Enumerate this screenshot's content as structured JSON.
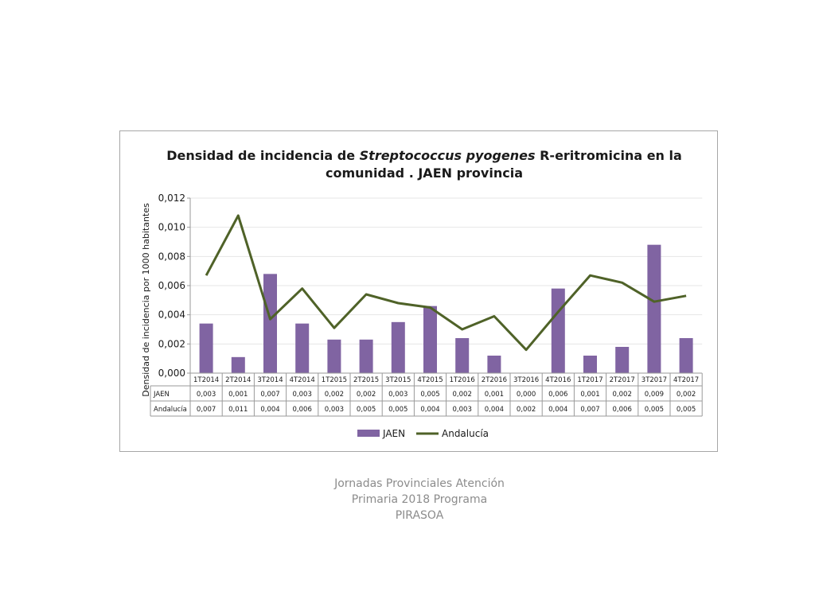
{
  "colors": {
    "jaen": "#8064a2",
    "andalucia": "#4f6228",
    "grid": "#e6e6e6",
    "axis": "#9a9a9a",
    "text": "#1a1a1a"
  },
  "chart_data": {
    "type": "bar",
    "title_line1_a": "Densidad de incidencia de ",
    "title_line1_italic": "Streptococcus pyogenes",
    "title_line1_b": " R-eritromicina en la",
    "title_line2": "comunidad . JAEN provincia",
    "ylabel": "Densidad de incidencia por 1000 habitantes",
    "ylim": [
      0,
      0.012
    ],
    "yticks": [
      "0,000",
      "0,002",
      "0,004",
      "0,006",
      "0,008",
      "0,010",
      "0,012"
    ],
    "categories": [
      "1T2014",
      "2T2014",
      "3T2014",
      "4T2014",
      "1T2015",
      "2T2015",
      "3T2015",
      "4T2015",
      "1T2016",
      "2T2016",
      "3T2016",
      "4T2016",
      "1T2017",
      "2T2017",
      "3T2017",
      "4T2017"
    ],
    "series": [
      {
        "name": "JAEN",
        "kind": "bar",
        "values": [
          0.0034,
          0.0011,
          0.0068,
          0.0034,
          0.0023,
          0.0023,
          0.0035,
          0.0046,
          0.0024,
          0.0012,
          0.0,
          0.0058,
          0.0012,
          0.0018,
          0.0088,
          0.0024
        ],
        "labels": [
          "0,003",
          "0,001",
          "0,007",
          "0,003",
          "0,002",
          "0,002",
          "0,003",
          "0,005",
          "0,002",
          "0,001",
          "0,000",
          "0,006",
          "0,001",
          "0,002",
          "0,009",
          "0,002"
        ]
      },
      {
        "name": "Andalucía",
        "kind": "line",
        "values": [
          0.0067,
          0.0108,
          0.0037,
          0.0058,
          0.0031,
          0.0054,
          0.0048,
          0.0045,
          0.003,
          0.0039,
          0.0016,
          0.0042,
          0.0067,
          0.0062,
          0.0049,
          0.0053
        ],
        "labels": [
          "0,007",
          "0,011",
          "0,004",
          "0,006",
          "0,003",
          "0,005",
          "0,005",
          "0,004",
          "0,003",
          "0,004",
          "0,002",
          "0,004",
          "0,007",
          "0,006",
          "0,005",
          "0,005"
        ]
      }
    ],
    "table_row_labels": [
      "JAEN",
      "Andalucía"
    ],
    "legend": [
      "JAEN",
      "Andalucía"
    ],
    "grid": true,
    "legend_position": "bottom"
  },
  "caption": [
    "Jornadas Provinciales Atención",
    "Primaria 2018  Programa",
    "PIRASOA"
  ]
}
